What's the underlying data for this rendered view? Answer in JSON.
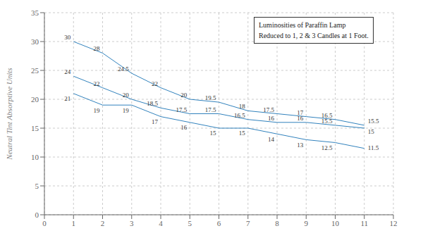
{
  "chart_data": {
    "type": "line",
    "title": "Luminosities of Paraffin Lamp",
    "subtitle": "Reduced to 1, 2 & 3 Candles at 1 Foot.",
    "ylabel": "Neutral Tint Absorptive Units",
    "x": [
      1,
      2,
      3,
      4,
      5,
      6,
      7,
      8,
      9,
      10,
      11
    ],
    "series": [
      {
        "values": [
          30,
          28,
          24.5,
          22,
          20,
          19.5,
          18,
          17.5,
          17,
          16.5,
          15.5
        ]
      },
      {
        "values": [
          24,
          22,
          20,
          18.5,
          17.5,
          17.5,
          16.5,
          16,
          16,
          15.5,
          15
        ]
      },
      {
        "values": [
          21,
          19,
          19,
          17,
          16,
          15,
          15,
          14,
          13,
          12.5,
          11.5
        ]
      }
    ],
    "xlim": [
      0,
      12
    ],
    "ylim": [
      0,
      35
    ],
    "xticks": [
      0,
      1,
      2,
      3,
      4,
      5,
      6,
      7,
      8,
      9,
      10,
      11,
      12
    ],
    "yticks": [
      0,
      5,
      10,
      15,
      20,
      25,
      30,
      35
    ],
    "grid": true,
    "data_labels": true
  }
}
